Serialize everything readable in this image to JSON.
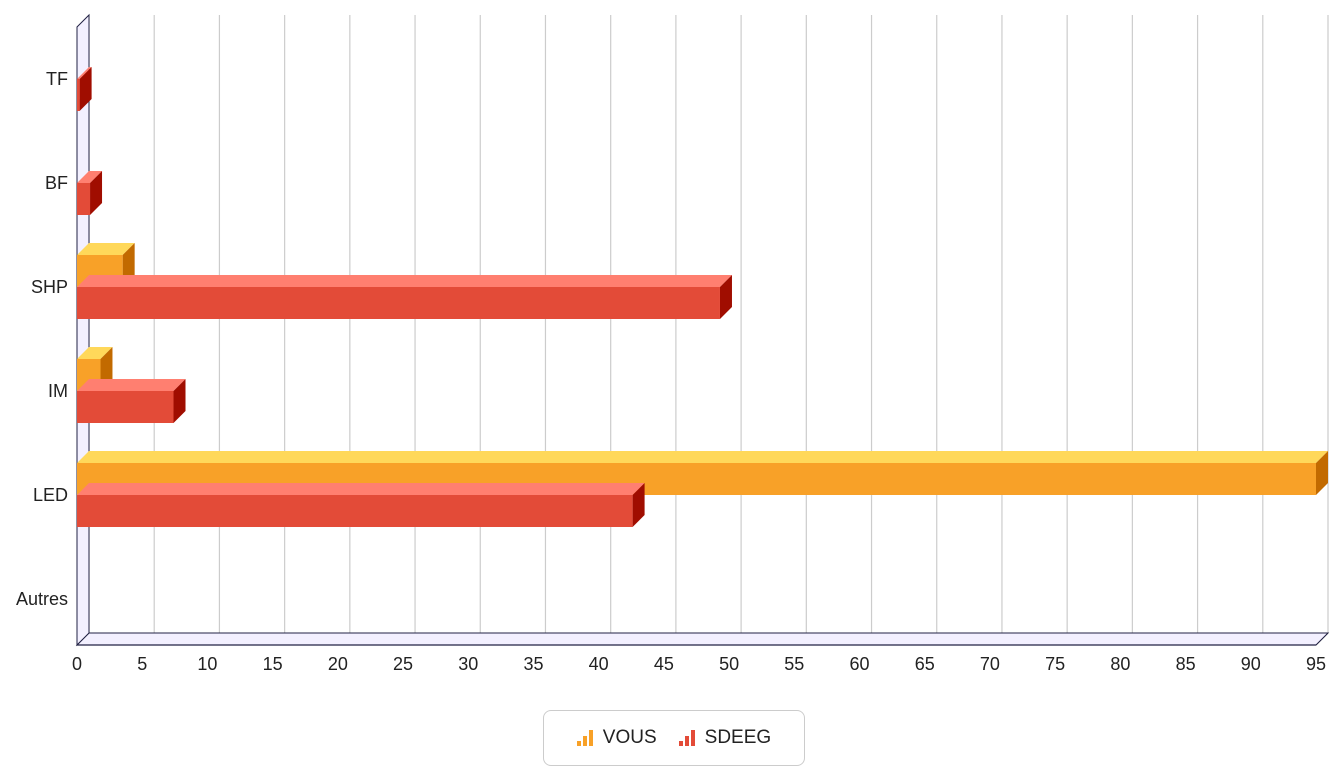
{
  "chart_data": {
    "type": "bar",
    "orientation": "horizontal",
    "style": "3d",
    "categories": [
      "TF",
      "BF",
      "SHP",
      "IM",
      "LED",
      "Autres"
    ],
    "series": [
      {
        "name": "VOUS",
        "values": [
          0,
          0,
          3.5,
          1.8,
          95,
          0
        ],
        "color": "#f8a128",
        "top_color": "#ffd85a",
        "side_color": "#c26a00"
      },
      {
        "name": "SDEEG",
        "values": [
          0.2,
          1,
          49.3,
          7.4,
          42.6,
          0
        ],
        "color": "#e34b38",
        "top_color": "#ff7f70",
        "side_color": "#a00d00"
      }
    ],
    "xlim": [
      0,
      95
    ],
    "xticks": [
      "0",
      "5",
      "10",
      "15",
      "20",
      "25",
      "30",
      "35",
      "40",
      "45",
      "50",
      "55",
      "60",
      "65",
      "70",
      "75",
      "80",
      "85",
      "90",
      "95"
    ],
    "grid": true,
    "legend_position": "bottom"
  }
}
